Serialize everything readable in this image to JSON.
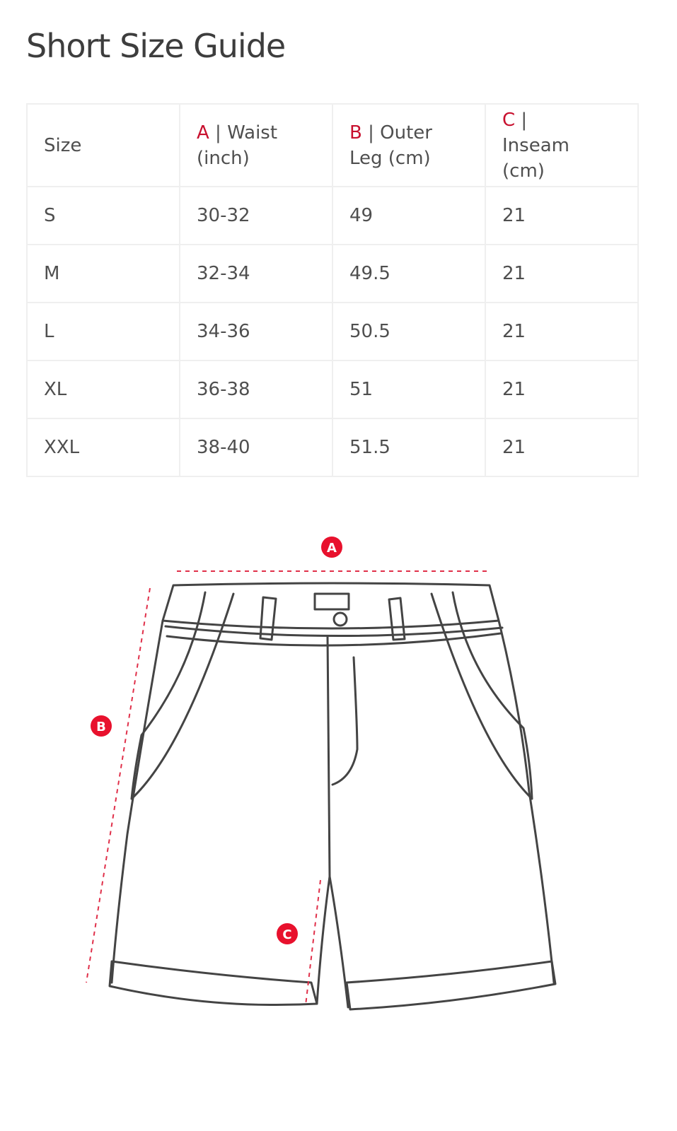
{
  "title": "Short Size Guide",
  "colors": {
    "accent": "#c8102e",
    "text": "#4a4a4a",
    "border": "#efefef"
  },
  "table": {
    "headers": [
      {
        "letter": "",
        "label": "Size"
      },
      {
        "letter": "A",
        "label": " | Waist (inch)"
      },
      {
        "letter": "B",
        "label": " | Outer Leg (cm)"
      },
      {
        "letter": "C",
        "label": " | Inseam (cm)"
      }
    ],
    "rows": [
      [
        "S",
        "30-32",
        "49",
        "21"
      ],
      [
        "M",
        "32-34",
        "49.5",
        "21"
      ],
      [
        "L",
        "34-36",
        "50.5",
        "21"
      ],
      [
        "XL",
        "36-38",
        "51",
        "21"
      ],
      [
        "XXL",
        "38-40",
        "51.5",
        "21"
      ]
    ]
  },
  "diagram": {
    "markers": [
      "A",
      "B",
      "C"
    ]
  }
}
